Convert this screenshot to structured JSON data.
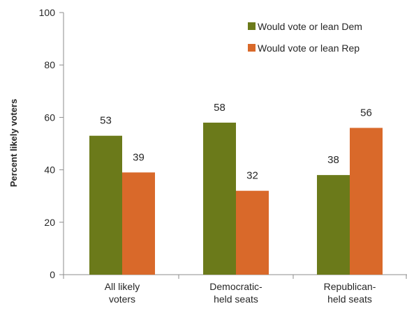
{
  "chart_data": {
    "type": "bar",
    "title": "",
    "xlabel": "",
    "ylabel": "Percent likely voters",
    "ylim": [
      0,
      100
    ],
    "yticks": [
      0,
      20,
      40,
      60,
      80,
      100
    ],
    "grid": false,
    "legend_position": "top-right",
    "categories": [
      [
        "All likely",
        "voters"
      ],
      [
        "Democratic-",
        "held seats"
      ],
      [
        "Republican-",
        "held seats"
      ]
    ],
    "series": [
      {
        "name": "Would vote or lean Dem",
        "color": "#6b7a1a",
        "values": [
          53,
          58,
          38
        ]
      },
      {
        "name": "Would vote or lean Rep",
        "color": "#d9692a",
        "values": [
          39,
          32,
          56
        ]
      }
    ]
  }
}
